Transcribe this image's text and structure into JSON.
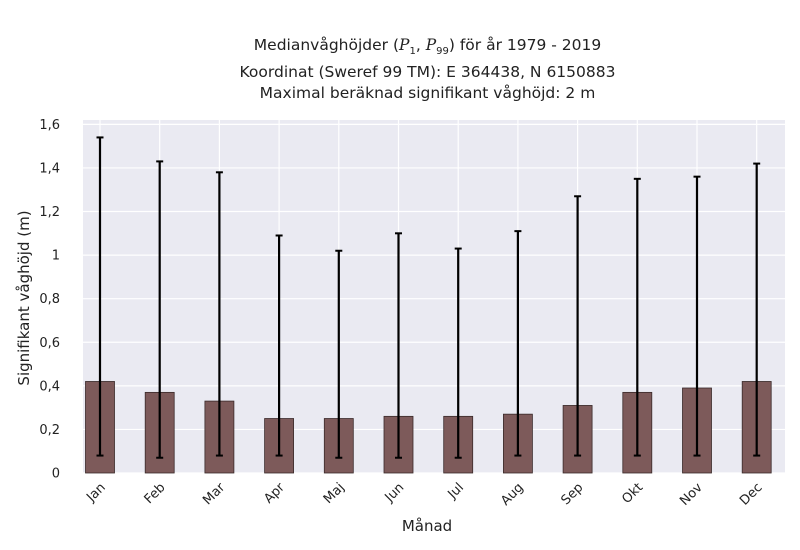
{
  "chart_data": {
    "type": "bar",
    "title": {
      "line1_prefix": "Medianvåghöjder (",
      "p_low": "P",
      "p_low_sub": "1",
      "p_sep": ", ",
      "p_high": "P",
      "p_high_sub": "99",
      "line1_suffix": ") för år 1979 - 2019",
      "line2": "Koordinat (Sweref 99 TM): E 364438, N 6150883",
      "line3": "Maximal beräknad signifikant våghöjd: 2 m"
    },
    "xlabel": "Månad",
    "ylabel": "Signifikant våghöjd (m)",
    "categories": [
      "Jan",
      "Feb",
      "Mar",
      "Apr",
      "Maj",
      "Jun",
      "Jul",
      "Aug",
      "Sep",
      "Okt",
      "Nov",
      "Dec"
    ],
    "series": [
      {
        "values": [
          0.42,
          0.37,
          0.33,
          0.25,
          0.25,
          0.26,
          0.26,
          0.27,
          0.31,
          0.37,
          0.39,
          0.42
        ],
        "p1": [
          0.08,
          0.07,
          0.08,
          0.08,
          0.07,
          0.07,
          0.07,
          0.08,
          0.08,
          0.08,
          0.08,
          0.08
        ],
        "p99": [
          1.54,
          1.43,
          1.38,
          1.09,
          1.02,
          1.1,
          1.03,
          1.11,
          1.27,
          1.35,
          1.36,
          1.42
        ]
      }
    ],
    "ylim": [
      0,
      1.62
    ],
    "yticks": [
      0,
      0.2,
      0.4,
      0.6,
      0.8,
      1.0,
      1.2,
      1.4,
      1.6
    ],
    "ytick_labels": [
      "0",
      "0,2",
      "0,4",
      "0,6",
      "0,8",
      "1",
      "1,2",
      "1,4",
      "1,6"
    ],
    "grid": true,
    "colors": {
      "bar": "#7d5a5a",
      "bar_edge": "#3a2a2a",
      "error": "#000000",
      "plot_bg": "#eaeaf2",
      "grid": "#ffffff"
    }
  }
}
